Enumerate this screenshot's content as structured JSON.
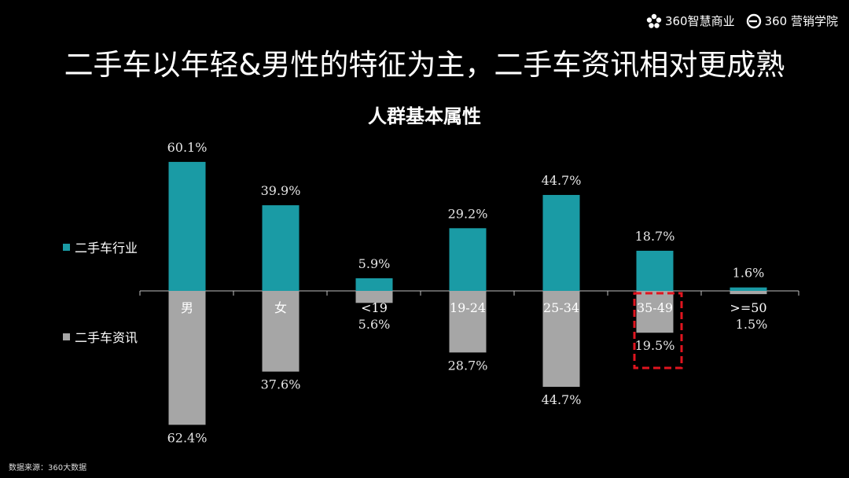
{
  "header": {
    "brand_1": "360智慧商业",
    "brand_2": "360 营销学院"
  },
  "title": "二手车以年轻&男性的特征为主，二手车资讯相对更成熟",
  "subtitle": "人群基本属性",
  "legend": [
    {
      "label": "二手车行业",
      "color": "#1a9ba5"
    },
    {
      "label": "二手车资讯",
      "color": "#a6a6a6"
    }
  ],
  "source": "数据来源：360大数据",
  "chart_data": {
    "type": "bar",
    "title": "人群基本属性",
    "categories": [
      "男",
      "女",
      "<19",
      "19-24",
      "25-34",
      "35-49",
      ">=50"
    ],
    "series": [
      {
        "name": "二手车行业",
        "values": [
          60.1,
          39.9,
          5.9,
          29.2,
          44.7,
          18.7,
          1.6
        ],
        "color": "#1a9ba5",
        "direction": "up"
      },
      {
        "name": "二手车资讯",
        "values": [
          62.4,
          37.6,
          5.6,
          28.7,
          44.7,
          19.5,
          1.5
        ],
        "color": "#a6a6a6",
        "direction": "down"
      }
    ],
    "value_suffix": "%",
    "highlight": {
      "category": "35-49",
      "style": "dashed",
      "color": "#e0151f"
    },
    "legend_position": "left",
    "grid": false
  }
}
